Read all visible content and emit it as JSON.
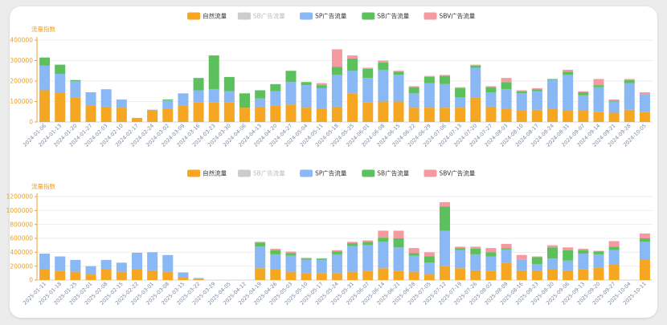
{
  "chart_data": [
    {
      "type": "bar",
      "stacked": true,
      "ylabel": "流量指数",
      "ylim": [
        0,
        400000
      ],
      "yticks": [
        "0",
        "100000",
        "200000",
        "300000",
        "400000"
      ],
      "legend": {
        "placement": "top-center",
        "items": [
          {
            "name": "自然流量",
            "color": "#f5a623",
            "active": true
          },
          {
            "name": "SB广告流量",
            "color": "#cccccc",
            "active": false
          },
          {
            "name": "SP广告流量",
            "color": "#8ab8f5",
            "active": true
          },
          {
            "name": "SB广告流量",
            "color": "#5cc15c",
            "active": true
          },
          {
            "name": "SBV广告流量",
            "color": "#f59aa0",
            "active": true
          }
        ]
      },
      "categories": [
        "2024-01-06",
        "2024-01-13",
        "2024-01-20",
        "2024-01-27",
        "2024-02-03",
        "2024-02-10",
        "2024-02-17",
        "2024-02-24",
        "2024-03-02",
        "2024-03-09",
        "2024-03-16",
        "2024-03-23",
        "2024-03-30",
        "2024-04-06",
        "2024-04-13",
        "2024-04-20",
        "2024-04-27",
        "2024-05-04",
        "2024-05-11",
        "2024-05-18",
        "2024-05-25",
        "2024-06-01",
        "2024-06-08",
        "2024-06-15",
        "2024-06-22",
        "2024-06-29",
        "2024-07-06",
        "2024-07-13",
        "2024-07-20",
        "2024-07-27",
        "2024-08-03",
        "2024-08-10",
        "2024-08-17",
        "2024-08-24",
        "2024-08-31",
        "2024-09-07",
        "2024-09-14",
        "2024-09-21",
        "2024-09-28",
        "2024-10-05"
      ],
      "xticks": [
        "2024-01-06",
        "2024-01-13",
        "2024-01-20",
        "2024-01-27",
        "2024-02-03",
        "2024-02-10",
        "2024-02-17",
        "2024-02-24",
        "2024-03-02",
        "2024-03-09",
        "2024-03-16",
        "2024-03-23",
        "2024-03-30",
        "2024-04-06",
        "2024-04-13",
        "2024-04-20",
        "2024-04-27",
        "2024-05-04",
        "2024-05-11",
        "2024-05-18",
        "2024-05-25",
        "2024-06-01",
        "2024-06-08",
        "2024-06-15",
        "2024-06-22",
        "2024-06-29",
        "2024-07-06",
        "2024-07-13",
        "2024-07-20",
        "2024-07-27",
        "2024-08-03",
        "2024-08-10",
        "2024-08-17",
        "2024-08-24",
        "2024-08-31",
        "2024-09-07",
        "2024-09-14",
        "2024-09-21",
        "2024-09-28",
        "2024-10-05"
      ],
      "series": [
        {
          "name": "自然流量",
          "color": "#f5a623",
          "values": [
            155000,
            145000,
            120000,
            80000,
            75000,
            70000,
            20000,
            55000,
            65000,
            80000,
            95000,
            95000,
            95000,
            70000,
            75000,
            80000,
            85000,
            70000,
            65000,
            75000,
            140000,
            95000,
            100000,
            100000,
            70000,
            70000,
            70000,
            70000,
            120000,
            75000,
            65000,
            55000,
            60000,
            65000,
            55000,
            55000,
            50000,
            45000,
            60000,
            50000
          ]
        },
        {
          "name": "SP广告流量",
          "color": "#8ab8f5",
          "values": [
            120000,
            90000,
            80000,
            65000,
            85000,
            40000,
            0,
            5000,
            40000,
            60000,
            60000,
            65000,
            55000,
            0,
            40000,
            70000,
            110000,
            110000,
            100000,
            155000,
            110000,
            120000,
            155000,
            130000,
            70000,
            120000,
            115000,
            50000,
            145000,
            70000,
            95000,
            85000,
            90000,
            140000,
            175000,
            75000,
            120000,
            55000,
            130000,
            85000
          ]
        },
        {
          "name": "SB广告流量",
          "color": "#5cc15c",
          "values": [
            40000,
            45000,
            5000,
            0,
            0,
            0,
            0,
            0,
            5000,
            0,
            60000,
            165000,
            70000,
            70000,
            40000,
            35000,
            55000,
            15000,
            15000,
            40000,
            60000,
            45000,
            35000,
            15000,
            30000,
            30000,
            40000,
            45000,
            10000,
            25000,
            35000,
            10000,
            10000,
            5000,
            15000,
            15000,
            10000,
            5000,
            15000,
            0
          ]
        },
        {
          "name": "SBV广告流量",
          "color": "#f59aa0",
          "values": [
            0,
            0,
            0,
            0,
            0,
            0,
            0,
            0,
            0,
            0,
            0,
            0,
            0,
            0,
            0,
            0,
            0,
            0,
            10000,
            85000,
            15000,
            5000,
            10000,
            5000,
            5000,
            5000,
            5000,
            5000,
            5000,
            5000,
            20000,
            5000,
            5000,
            0,
            10000,
            5000,
            30000,
            5000,
            5000,
            10000
          ]
        }
      ]
    },
    {
      "type": "bar",
      "stacked": true,
      "ylabel": "流量指数",
      "ylim": [
        0,
        1200000
      ],
      "yticks": [
        "0",
        "200000",
        "400000",
        "600000",
        "800000",
        "1000000",
        "1200000"
      ],
      "legend": {
        "placement": "top-center",
        "items": [
          {
            "name": "自然流量",
            "color": "#f5a623",
            "active": true
          },
          {
            "name": "SB广告流量",
            "color": "#cccccc",
            "active": false
          },
          {
            "name": "SP广告流量",
            "color": "#8ab8f5",
            "active": true
          },
          {
            "name": "SB广告流量",
            "color": "#5cc15c",
            "active": true
          },
          {
            "name": "SBV广告流量",
            "color": "#f59aa0",
            "active": true
          }
        ]
      },
      "categories": [
        "2025-01-11",
        "2025-01-18",
        "2025-01-25",
        "2025-02-01",
        "2025-02-08",
        "2025-02-15",
        "2025-02-22",
        "2025-03-01",
        "2025-03-08",
        "2025-03-15",
        "2025-03-22",
        "2025-03-29",
        "2025-04-05",
        "2025-04-12",
        "2025-04-19",
        "2025-04-26",
        "2025-05-03",
        "2025-05-10",
        "2025-05-17",
        "2025-05-24",
        "2025-05-31",
        "2025-06-07",
        "2025-06-14",
        "2025-06-21",
        "2025-06-28",
        "2025-07-05",
        "2025-07-12",
        "2025-07-19",
        "2025-07-26",
        "2025-08-02",
        "2025-08-09",
        "2025-08-16",
        "2025-08-23",
        "2025-08-30",
        "2025-09-06",
        "2025-09-13",
        "2025-09-20",
        "2025-09-27",
        "2025-10-04",
        "2025-10-11"
      ],
      "xticks": [
        "2025-01-11",
        "2025-01-18",
        "2025-01-25",
        "2025-02-01",
        "2025-02-08",
        "2025-02-15",
        "2025-02-22",
        "2025-03-01",
        "2025-03-08",
        "2025-03-15",
        "2025-03-22",
        "2025-03-29",
        "2025-04-05",
        "2025-04-12",
        "2025-04-19",
        "2025-04-26",
        "2025-05-03",
        "2025-05-10",
        "2025-05-17",
        "2025-05-24",
        "2025-05-31",
        "2025-06-07",
        "2025-06-14",
        "2025-06-21",
        "2025-06-28",
        "2025-07-05",
        "2025-07-12",
        "2025-07-19",
        "2025-07-26",
        "2025-08-02",
        "2025-08-09",
        "2025-08-16",
        "2025-08-23",
        "2025-08-30",
        "2025-09-06",
        "2025-09-13",
        "2025-09-20",
        "2025-09-27",
        "2025-10-04",
        "2025-10-11"
      ],
      "series": [
        {
          "name": "自然流量",
          "color": "#f5a623",
          "values": [
            150000,
            130000,
            120000,
            80000,
            150000,
            120000,
            150000,
            140000,
            120000,
            35000,
            20000,
            0,
            0,
            0,
            170000,
            150000,
            120000,
            100000,
            100000,
            100000,
            120000,
            130000,
            170000,
            130000,
            120000,
            80000,
            200000,
            170000,
            140000,
            130000,
            250000,
            140000,
            140000,
            150000,
            140000,
            160000,
            180000,
            230000,
            0,
            300000
          ]
        },
        {
          "name": "SP广告流量",
          "color": "#8ab8f5",
          "values": [
            230000,
            210000,
            170000,
            120000,
            140000,
            130000,
            230000,
            260000,
            240000,
            75000,
            10000,
            0,
            0,
            0,
            310000,
            220000,
            230000,
            190000,
            190000,
            270000,
            370000,
            370000,
            380000,
            340000,
            230000,
            170000,
            510000,
            260000,
            230000,
            210000,
            190000,
            150000,
            90000,
            160000,
            140000,
            220000,
            190000,
            200000,
            0,
            250000
          ]
        },
        {
          "name": "SB广告流量",
          "color": "#5cc15c",
          "values": [
            0,
            0,
            0,
            0,
            0,
            0,
            10000,
            0,
            0,
            0,
            0,
            0,
            0,
            0,
            60000,
            60000,
            40000,
            20000,
            20000,
            40000,
            40000,
            50000,
            60000,
            130000,
            40000,
            90000,
            350000,
            30000,
            80000,
            60000,
            20000,
            0,
            100000,
            160000,
            150000,
            50000,
            40000,
            50000,
            0,
            50000
          ]
        },
        {
          "name": "SBV广告流量",
          "color": "#f59aa0",
          "values": [
            0,
            0,
            0,
            0,
            0,
            0,
            0,
            0,
            0,
            0,
            0,
            0,
            0,
            0,
            10000,
            20000,
            20000,
            10000,
            0,
            20000,
            20000,
            20000,
            100000,
            110000,
            70000,
            60000,
            60000,
            20000,
            30000,
            60000,
            60000,
            70000,
            10000,
            30000,
            40000,
            20000,
            10000,
            80000,
            0,
            70000
          ]
        }
      ]
    }
  ]
}
